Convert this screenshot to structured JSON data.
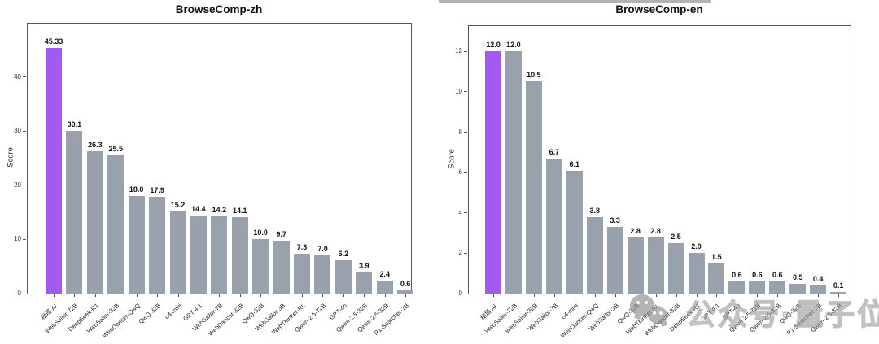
{
  "watermark": {
    "text": "公众号·量子位",
    "icon": "wechat-icon"
  },
  "chart_data": [
    {
      "type": "bar",
      "title": "BrowseComp-zh",
      "xlabel": "",
      "ylabel": "Score",
      "ylim": [
        0,
        50
      ],
      "yticks": [
        0,
        10,
        20,
        30,
        40
      ],
      "grid": false,
      "legend": "none",
      "highlight_index": 0,
      "highlight_color": "#a35af0",
      "bar_color": "#99a1ad",
      "categories": [
        "秘塔 AI",
        "WebSailor-72B",
        "DeepSeek-R1",
        "WebSailor-32B",
        "WebDancer-QwQ",
        "QwQ-32B",
        "o4-mini",
        "GPT-4.1",
        "WebSailor-7B",
        "WebDancer-32B",
        "QwQ-32B",
        "WebSailor-3B",
        "WebThinker-RL",
        "Qwen-2.5-72B",
        "GPT-4o",
        "Qwen-2.5-32B",
        "Qwen-2.5-32B",
        "R1-Searcher-7B"
      ],
      "values": [
        45.33,
        30.1,
        26.3,
        25.5,
        18.0,
        17.9,
        15.2,
        14.4,
        14.2,
        14.1,
        10.0,
        9.7,
        7.3,
        7.0,
        6.2,
        3.9,
        2.4,
        0.6
      ],
      "value_labels": [
        "45.33",
        "30.1",
        "26.3",
        "25.5",
        "18.0",
        "17.9",
        "15.2",
        "14.4",
        "14.2",
        "14.1",
        "10.0",
        "9.7",
        "7.3",
        "7.0",
        "6.2",
        "3.9",
        "2.4",
        "0.6"
      ]
    },
    {
      "type": "bar",
      "title": "BrowseComp-en",
      "xlabel": "",
      "ylabel": "Score",
      "ylim": [
        0,
        13.3
      ],
      "yticks": [
        0,
        2,
        4,
        6,
        8,
        10,
        12
      ],
      "grid": false,
      "legend": "none",
      "highlight_index": 0,
      "highlight_color": "#a35af0",
      "bar_color": "#99a1ad",
      "categories": [
        "秘塔 AI",
        "WebSailor-72B",
        "WebSailor-32B",
        "WebSailor-7B",
        "o4-mini",
        "WebDancer-QwQ",
        "WebSailor-3B",
        "QwQ-32B",
        "WebThinker-RL",
        "WebDancer-32B",
        "DeepSeek-R1",
        "GPT-4.1",
        "GPT-4o",
        "Qwen-2.5-72B",
        "Qwen-2.5-32B",
        "QwQ-32B",
        "R1-Searcher-7B",
        "Qwen-2.5-32B"
      ],
      "values": [
        12.0,
        12.0,
        10.5,
        6.7,
        6.1,
        3.8,
        3.3,
        2.8,
        2.8,
        2.5,
        2.0,
        1.5,
        0.6,
        0.6,
        0.6,
        0.5,
        0.4,
        0.1
      ],
      "value_labels": [
        "12.0",
        "12.0",
        "10.5",
        "6.7",
        "6.1",
        "3.8",
        "3.3",
        "2.8",
        "2.8",
        "2.5",
        "2.0",
        "1.5",
        "0.6",
        "0.6",
        "0.6",
        "0.5",
        "0.4",
        "0.1"
      ]
    }
  ]
}
